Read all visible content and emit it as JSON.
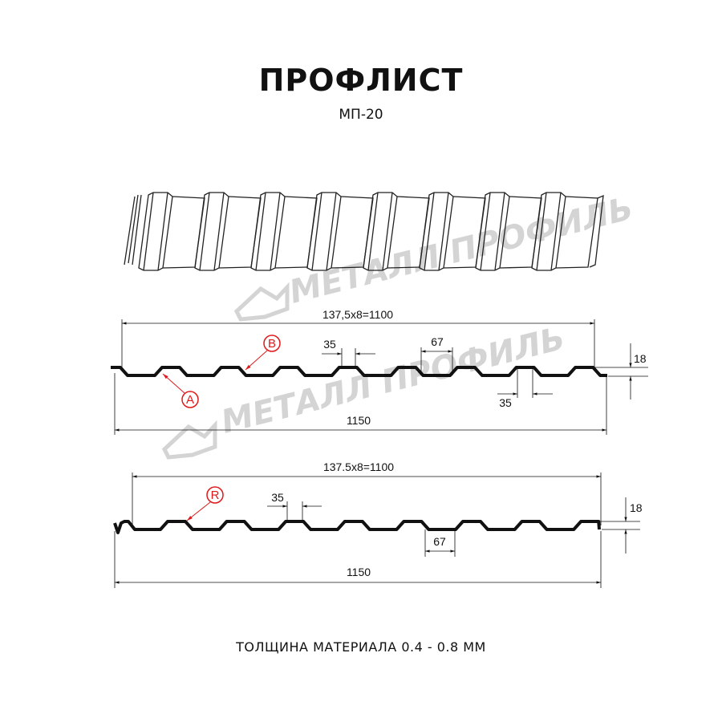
{
  "title": "ПРОФЛИСТ",
  "subtitle": "МП-20",
  "footer": "ТОЛЩИНА МАТЕРИАЛА 0.4 - 0.8 ММ",
  "watermark": "МЕТАЛЛ ПРОФИЛЬ",
  "colors": {
    "accent": "#e0191b",
    "line": "#111111",
    "watermark": "#d4d4d4"
  },
  "profile_a": {
    "pitch_label": "137,5x8=1100",
    "width_label": "1150",
    "crest_label": "35",
    "trough_label": "35",
    "flat_label": "67",
    "height_label": "18",
    "marker_a": "A",
    "marker_b": "B"
  },
  "profile_r": {
    "pitch_label": "137.5x8=1100",
    "width_label": "1150",
    "crest_label": "35",
    "flat_label": "67",
    "height_label": "18",
    "marker_r": "R"
  }
}
